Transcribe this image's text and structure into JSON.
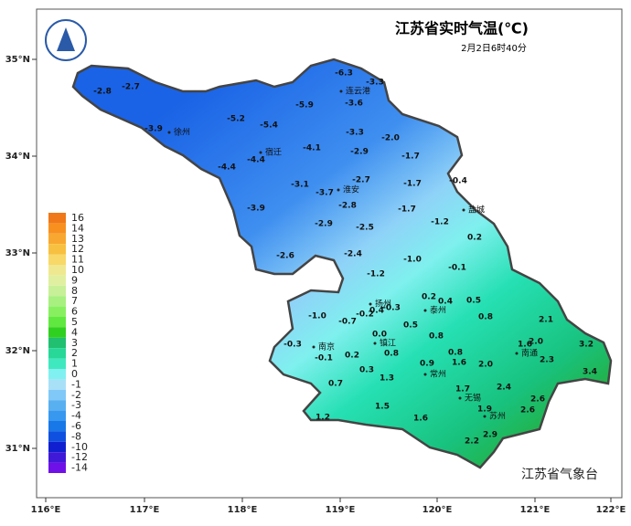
{
  "header": {
    "title": "江苏省实时气温(℃)",
    "subtitle": "2月2日6时40分"
  },
  "agency": "江苏省气象台",
  "longitude_labels": [
    "116°E",
    "117°E",
    "118°E",
    "119°E",
    "120°E",
    "121°E",
    "122°E"
  ],
  "latitude_labels": [
    "35°N",
    "34°N",
    "33°N",
    "32°N",
    "31°N"
  ],
  "legend": [
    {
      "label": "16",
      "color": "#f07818"
    },
    {
      "label": "14",
      "color": "#f89020"
    },
    {
      "label": "13",
      "color": "#f8a830"
    },
    {
      "label": "12",
      "color": "#f8c040"
    },
    {
      "label": "11",
      "color": "#f8d868"
    },
    {
      "label": "10",
      "color": "#f0e890"
    },
    {
      "label": "9",
      "color": "#e0f0a0"
    },
    {
      "label": "8",
      "color": "#c8f098"
    },
    {
      "label": "7",
      "color": "#a8f080"
    },
    {
      "label": "6",
      "color": "#88f060"
    },
    {
      "label": "5",
      "color": "#60e840"
    },
    {
      "label": "4",
      "color": "#30d020"
    },
    {
      "label": "3",
      "color": "#20c070"
    },
    {
      "label": "2",
      "color": "#28d898"
    },
    {
      "label": "1",
      "color": "#40e8c0"
    },
    {
      "label": "0",
      "color": "#80f0f0"
    },
    {
      "label": "-1",
      "color": "#a8e0f8"
    },
    {
      "label": "-2",
      "color": "#80c8f8"
    },
    {
      "label": "-3",
      "color": "#58b0f0"
    },
    {
      "label": "-4",
      "color": "#3898f0"
    },
    {
      "label": "-6",
      "color": "#1878e8"
    },
    {
      "label": "-8",
      "color": "#1050e0"
    },
    {
      "label": "-10",
      "color": "#1020d0"
    },
    {
      "label": "-12",
      "color": "#4018d8"
    },
    {
      "label": "-14",
      "color": "#7010e8"
    }
  ],
  "cities": [
    "徐州",
    "宿迁",
    "连云港",
    "淮安",
    "盐城",
    "扬州",
    "泰州",
    "南京",
    "镇江",
    "常州",
    "无锡",
    "苏州",
    "南通"
  ],
  "stations": [
    "-6.3",
    "-3.3",
    "-2.8",
    "-2.7",
    "-5.9",
    "-3.6",
    "-5.2",
    "-5.4",
    "-3.9",
    "-3.3",
    "-2.0",
    "-4.1",
    "-2.9",
    "-1.7",
    "-4.4",
    "-4.4",
    "-0.4",
    "-2.7",
    "-1.7",
    "-3.1",
    "-3.7",
    "-2.8",
    "-3.9",
    "-1.7",
    "-2.9",
    "-2.5",
    "-1.2",
    "0.2",
    "-2.6",
    "-2.4",
    "-1.0",
    "-0.1",
    "-1.2",
    "0.2",
    "0.4",
    "0.5",
    "-0.3",
    "-1.0",
    "-0.7",
    "-0.2",
    "0.4",
    "0.8",
    "2.1",
    "0.5",
    "0.0",
    "1.6",
    "2.0",
    "3.2",
    "0.8",
    "-0.3",
    "0.2",
    "0.8",
    "0.8",
    "2.3",
    "3.4",
    "-0.1",
    "0.9",
    "1.6",
    "2.0",
    "0.3",
    "1.3",
    "0.7",
    "1.7",
    "2.4",
    "2.6",
    "1.5",
    "1.9",
    "2.6",
    "1.2",
    "1.6",
    "2.9",
    "2.2"
  ]
}
